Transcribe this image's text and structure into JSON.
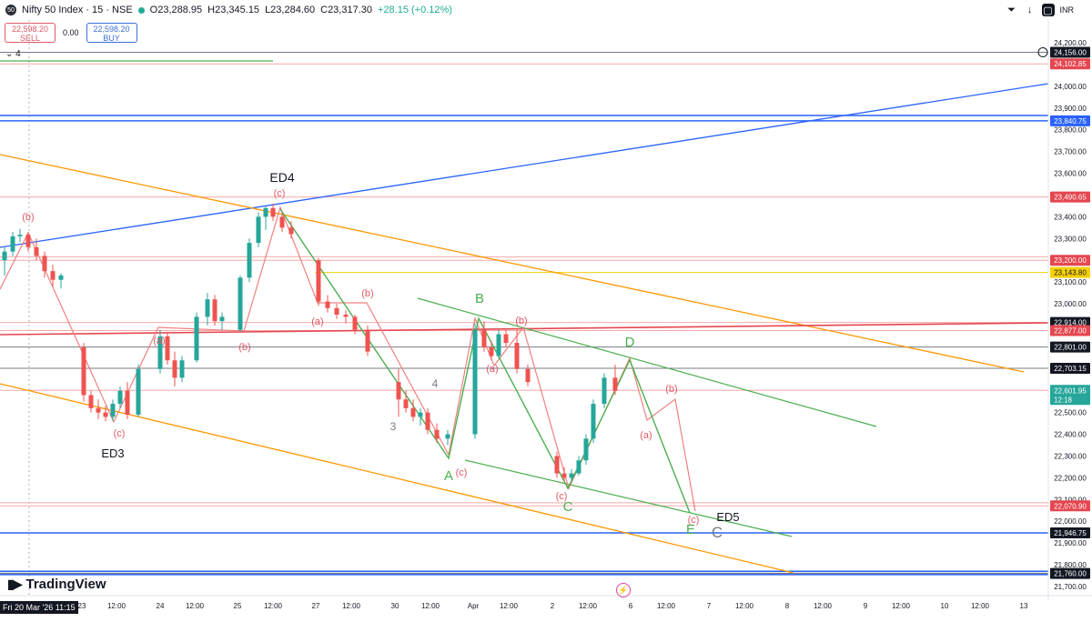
{
  "header": {
    "symbol_badge": "50",
    "title": "Nifty 50 Index · 15 · NSE",
    "open": "O23,288.95",
    "high": "H23,345.15",
    "low": "L23,284.60",
    "close": "C23,317.30",
    "change": "+28.15 (+0.12%)"
  },
  "trade": {
    "sell_price": "22,598.20",
    "sell_label": "SELL",
    "spread": "0.00",
    "buy_price": "22,598.20",
    "buy_label": "BUY"
  },
  "collapse_label": "4",
  "toolbar": {
    "currency": "INR"
  },
  "brand": "TradingView",
  "date_badge": "Fri 20 Mar '26  11:15",
  "colors": {
    "up": "#26a69a",
    "down": "#ef5350",
    "blue": "#2962ff",
    "orange": "#ff9800",
    "green": "#4caf50",
    "red_wave": "#f08080",
    "red_line": "#e5464f",
    "yellow": "#f5d000"
  },
  "icons": [
    "alert-icon",
    "download-icon",
    "layout-icon",
    "add-circle-icon",
    "flash-icon"
  ],
  "chart_data": {
    "type": "candlestick",
    "y_range": [
      21700,
      24200
    ],
    "y_ticks": [
      "24,200.00",
      "24,100.00",
      "24,000.00",
      "23,900.00",
      "23,800.00",
      "23,700.00",
      "23,600.00",
      "23,500.00",
      "23,400.00",
      "23,300.00",
      "23,200.00",
      "23,100.00",
      "23,000.00",
      "22,900.00",
      "22,800.00",
      "22,700.00",
      "22,600.00",
      "22,500.00",
      "22,400.00",
      "22,300.00",
      "22,200.00",
      "22,100.00",
      "22,000.00",
      "21,900.00",
      "21,800.00",
      "21,700.00"
    ],
    "x_ticks": [
      "23",
      "12:00",
      "24",
      "12:00",
      "25",
      "12:00",
      "27",
      "12:00",
      "30",
      "12:00",
      "Apr",
      "12:00",
      "2",
      "12:00",
      "6",
      "12:00",
      "7",
      "12:00",
      "8",
      "12:00",
      "9",
      "12:00",
      "10",
      "12:00",
      "13"
    ],
    "price_tags": [
      {
        "label": "24,156.00",
        "bg": "#131722"
      },
      {
        "label": "24,102.85",
        "bg": "#e5464f"
      },
      {
        "label": "23,840.75",
        "bg": "#2962ff"
      },
      {
        "label": "23,490.65",
        "bg": "#e5464f"
      },
      {
        "label": "23,200.00",
        "bg": "#e5464f"
      },
      {
        "label": "23,143.80",
        "bg": "#f5d000"
      },
      {
        "label": "22,914.00",
        "bg": "#131722"
      },
      {
        "label": "22,877.00",
        "bg": "#e5464f"
      },
      {
        "label": "22,801.00",
        "bg": "#131722"
      },
      {
        "label": "22,703.15",
        "bg": "#131722"
      },
      {
        "label": "22,601.95",
        "bg": "#26a69a"
      },
      {
        "label": "22,070.90",
        "bg": "#e5464f"
      },
      {
        "label": "21,946.75",
        "bg": "#131722"
      },
      {
        "label": "21,760.00",
        "bg": "#131722"
      }
    ],
    "countdown": "12:18",
    "hlines": [
      24156.0,
      24102.85,
      23865.6,
      23840.75,
      23490.65,
      23216.0,
      23200.0,
      23143.8,
      22914.0,
      22877.0,
      22801.0,
      22703.15,
      22601.95,
      22085.0,
      22070.9,
      21946.75,
      21760.0
    ],
    "wave_labels": [
      {
        "text": "ED4",
        "color": "#131722"
      },
      {
        "text": "(c)",
        "color": "#e05a68"
      },
      {
        "text": "(b)",
        "color": "#e05a68"
      },
      {
        "text": "(a)",
        "color": "#e05a68"
      },
      {
        "text": "(b)",
        "color": "#e05a68"
      },
      {
        "text": "(c)",
        "color": "#e05a68"
      },
      {
        "text": "ED3",
        "color": "#131722"
      },
      {
        "text": "(b)",
        "color": "#e05a68"
      },
      {
        "text": "(a)",
        "color": "#e05a68"
      },
      {
        "text": "B",
        "color": "#4caf50"
      },
      {
        "text": "(b)",
        "color": "#e05a68"
      },
      {
        "text": "(a)",
        "color": "#e05a68"
      },
      {
        "text": "4",
        "color": "#787b86"
      },
      {
        "text": "3",
        "color": "#787b86"
      },
      {
        "text": "A",
        "color": "#4caf50"
      },
      {
        "text": "(c)",
        "color": "#e05a68"
      },
      {
        "text": "(c)",
        "color": "#e05a68"
      },
      {
        "text": "C",
        "color": "#4caf50"
      },
      {
        "text": "D",
        "color": "#4caf50"
      },
      {
        "text": "(b)",
        "color": "#e05a68"
      },
      {
        "text": "(a)",
        "color": "#e05a68"
      },
      {
        "text": "(c)",
        "color": "#e05a68"
      },
      {
        "text": "ED5",
        "color": "#131722"
      },
      {
        "text": "E",
        "color": "#4caf50"
      },
      {
        "text": "C",
        "color": "#787b86"
      }
    ],
    "candles": [
      {
        "t": 0,
        "o": 23200,
        "h": 23260,
        "l": 23130,
        "c": 23240
      },
      {
        "t": 1,
        "o": 23240,
        "h": 23330,
        "l": 23220,
        "c": 23310
      },
      {
        "t": 2,
        "o": 23310,
        "h": 23345,
        "l": 23284,
        "c": 23317
      },
      {
        "t": 3,
        "o": 23317,
        "h": 23330,
        "l": 23240,
        "c": 23260
      },
      {
        "t": 4,
        "o": 23260,
        "h": 23300,
        "l": 23200,
        "c": 23220
      },
      {
        "t": 5,
        "o": 23220,
        "h": 23240,
        "l": 23120,
        "c": 23150
      },
      {
        "t": 6,
        "o": 23150,
        "h": 23180,
        "l": 23080,
        "c": 23110
      },
      {
        "t": 7,
        "o": 23110,
        "h": 23140,
        "l": 23070,
        "c": 23130
      },
      {
        "t": 8,
        "o": 22800,
        "h": 22820,
        "l": 22550,
        "c": 22580
      },
      {
        "t": 9,
        "o": 22580,
        "h": 22600,
        "l": 22500,
        "c": 22520
      },
      {
        "t": 10,
        "o": 22520,
        "h": 22560,
        "l": 22470,
        "c": 22500
      },
      {
        "t": 11,
        "o": 22500,
        "h": 22530,
        "l": 22460,
        "c": 22480
      },
      {
        "t": 12,
        "o": 22480,
        "h": 22560,
        "l": 22460,
        "c": 22540
      },
      {
        "t": 13,
        "o": 22540,
        "h": 22620,
        "l": 22520,
        "c": 22600
      },
      {
        "t": 14,
        "o": 22600,
        "h": 22640,
        "l": 22470,
        "c": 22490
      },
      {
        "t": 15,
        "o": 22490,
        "h": 22720,
        "l": 22480,
        "c": 22700
      },
      {
        "t": 16,
        "o": 22700,
        "h": 22880,
        "l": 22680,
        "c": 22850
      },
      {
        "t": 17,
        "o": 22850,
        "h": 22870,
        "l": 22720,
        "c": 22740
      },
      {
        "t": 18,
        "o": 22740,
        "h": 22780,
        "l": 22620,
        "c": 22660
      },
      {
        "t": 19,
        "o": 22660,
        "h": 22760,
        "l": 22640,
        "c": 22740
      },
      {
        "t": 20,
        "o": 22740,
        "h": 22960,
        "l": 22730,
        "c": 22940
      },
      {
        "t": 21,
        "o": 22940,
        "h": 23050,
        "l": 22900,
        "c": 23020
      },
      {
        "t": 22,
        "o": 23020,
        "h": 23040,
        "l": 22900,
        "c": 22920
      },
      {
        "t": 23,
        "o": 22920,
        "h": 22960,
        "l": 22880,
        "c": 22940
      },
      {
        "t": 24,
        "o": 22880,
        "h": 23130,
        "l": 22870,
        "c": 23120
      },
      {
        "t": 25,
        "o": 23120,
        "h": 23300,
        "l": 23100,
        "c": 23280
      },
      {
        "t": 26,
        "o": 23280,
        "h": 23420,
        "l": 23260,
        "c": 23400
      },
      {
        "t": 27,
        "o": 23400,
        "h": 23450,
        "l": 23340,
        "c": 23440
      },
      {
        "t": 28,
        "o": 23440,
        "h": 23460,
        "l": 23380,
        "c": 23400
      },
      {
        "t": 29,
        "o": 23400,
        "h": 23420,
        "l": 23330,
        "c": 23350
      },
      {
        "t": 30,
        "o": 23350,
        "h": 23380,
        "l": 23300,
        "c": 23320
      },
      {
        "t": 31,
        "o": 23200,
        "h": 23210,
        "l": 22990,
        "c": 23010
      },
      {
        "t": 32,
        "o": 23010,
        "h": 23040,
        "l": 22960,
        "c": 22980
      },
      {
        "t": 33,
        "o": 22980,
        "h": 23000,
        "l": 22930,
        "c": 22950
      },
      {
        "t": 34,
        "o": 22950,
        "h": 22970,
        "l": 22910,
        "c": 22940
      },
      {
        "t": 35,
        "o": 22940,
        "h": 22950,
        "l": 22860,
        "c": 22880
      },
      {
        "t": 36,
        "o": 22880,
        "h": 22900,
        "l": 22760,
        "c": 22780
      },
      {
        "t": 37,
        "o": 22640,
        "h": 22700,
        "l": 22480,
        "c": 22560
      },
      {
        "t": 38,
        "o": 22560,
        "h": 22600,
        "l": 22500,
        "c": 22520
      },
      {
        "t": 39,
        "o": 22520,
        "h": 22560,
        "l": 22460,
        "c": 22480
      },
      {
        "t": 40,
        "o": 22480,
        "h": 22520,
        "l": 22440,
        "c": 22500
      },
      {
        "t": 41,
        "o": 22500,
        "h": 22520,
        "l": 22400,
        "c": 22420
      },
      {
        "t": 42,
        "o": 22420,
        "h": 22450,
        "l": 22360,
        "c": 22380
      },
      {
        "t": 43,
        "o": 22380,
        "h": 22420,
        "l": 22350,
        "c": 22400
      },
      {
        "t": 44,
        "o": 22400,
        "h": 22910,
        "l": 22380,
        "c": 22880
      },
      {
        "t": 45,
        "o": 22880,
        "h": 22920,
        "l": 22780,
        "c": 22800
      },
      {
        "t": 46,
        "o": 22800,
        "h": 22830,
        "l": 22740,
        "c": 22760
      },
      {
        "t": 47,
        "o": 22760,
        "h": 22880,
        "l": 22750,
        "c": 22860
      },
      {
        "t": 48,
        "o": 22860,
        "h": 22880,
        "l": 22800,
        "c": 22820
      },
      {
        "t": 49,
        "o": 22820,
        "h": 22880,
        "l": 22680,
        "c": 22700
      },
      {
        "t": 50,
        "o": 22700,
        "h": 22720,
        "l": 22620,
        "c": 22640
      },
      {
        "t": 51,
        "o": 22300,
        "h": 22320,
        "l": 22200,
        "c": 22220
      },
      {
        "t": 52,
        "o": 22220,
        "h": 22250,
        "l": 22180,
        "c": 22200
      },
      {
        "t": 53,
        "o": 22200,
        "h": 22240,
        "l": 22180,
        "c": 22220
      },
      {
        "t": 54,
        "o": 22220,
        "h": 22300,
        "l": 22210,
        "c": 22280
      },
      {
        "t": 55,
        "o": 22280,
        "h": 22400,
        "l": 22260,
        "c": 22380
      },
      {
        "t": 56,
        "o": 22380,
        "h": 22560,
        "l": 22360,
        "c": 22540
      },
      {
        "t": 57,
        "o": 22540,
        "h": 22680,
        "l": 22520,
        "c": 22660
      },
      {
        "t": 58,
        "o": 22660,
        "h": 22720,
        "l": 22580,
        "c": 22600
      }
    ]
  }
}
